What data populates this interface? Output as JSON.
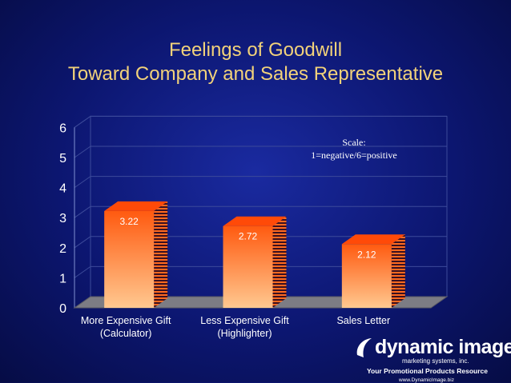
{
  "chart_data": {
    "type": "bar",
    "title_lines": [
      "Feelings of Goodwill",
      "Toward Company and Sales Representative"
    ],
    "categories": [
      [
        "More Expensive Gift",
        "(Calculator)"
      ],
      [
        "Less Expensive Gift",
        "(Highlighter)"
      ],
      [
        "Sales Letter",
        ""
      ]
    ],
    "values": [
      3.22,
      2.72,
      2.12
    ],
    "value_labels": [
      "3.22",
      "2.72",
      "2.12"
    ],
    "yticks": [
      "0",
      "1",
      "2",
      "3",
      "4",
      "5",
      "6"
    ],
    "ylim": [
      0,
      6
    ],
    "annotation": [
      "Scale:",
      "1=negative/6=positive"
    ],
    "grid": true,
    "three_d": true,
    "colors": {
      "bar_top": "#ff5a10",
      "bar_bottom": "#ffc890",
      "background": "#0c1670",
      "title": "#f2d27a"
    }
  },
  "logo": {
    "name": "dynamic image",
    "subtitle": "marketing systems, inc.",
    "tagline": "Your Promotional Products Resource",
    "url": "www.DynamicImage.biz"
  }
}
